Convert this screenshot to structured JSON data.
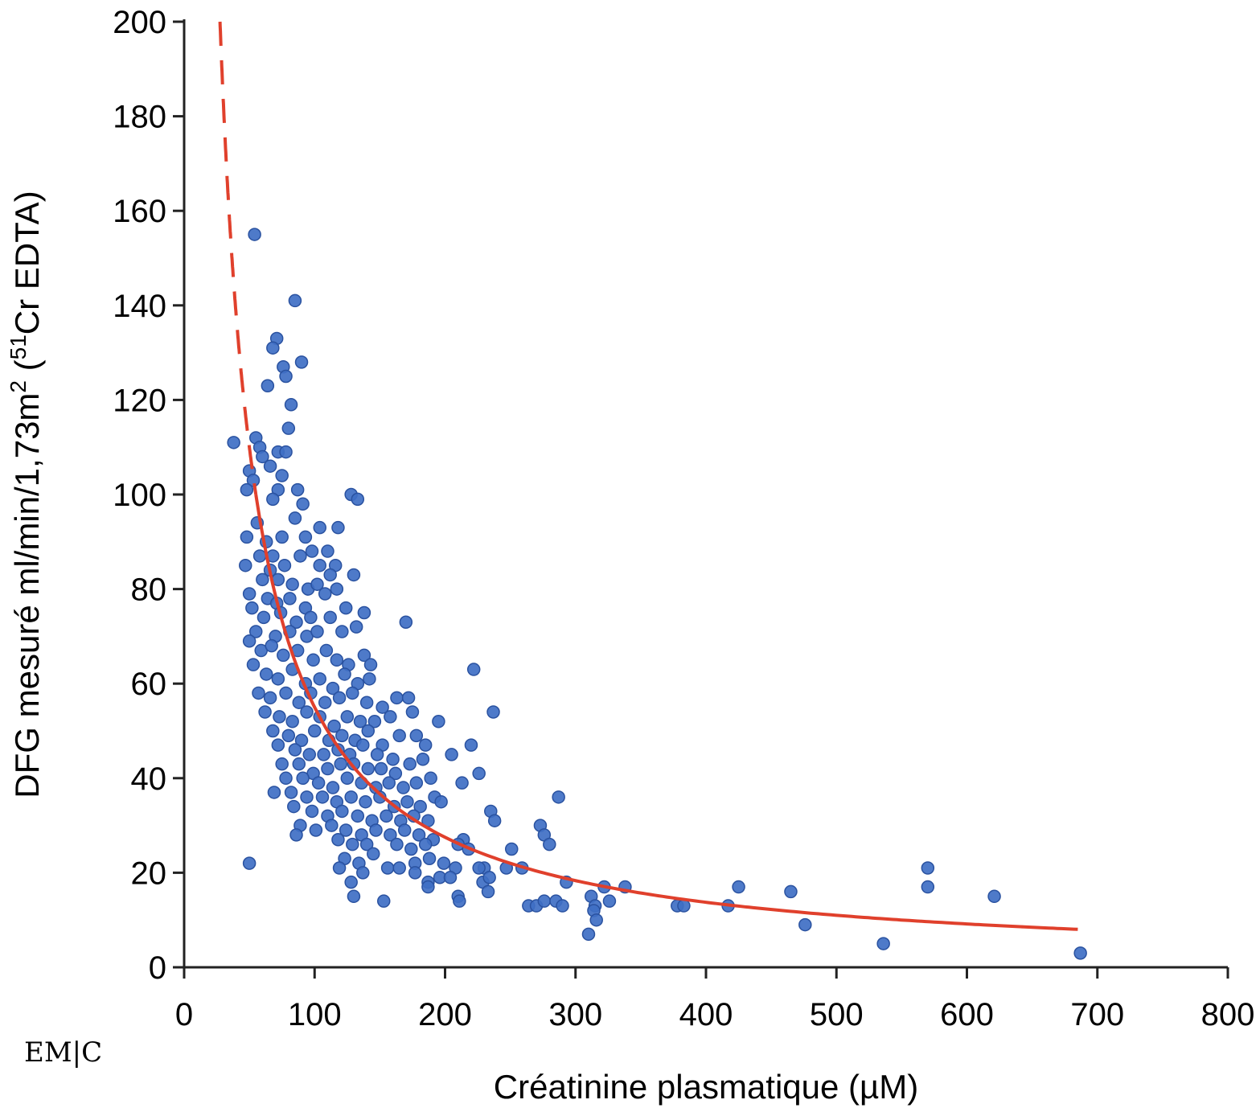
{
  "logo": {
    "text": "EM|C",
    "kind": "publisher-logo"
  },
  "chart_data": {
    "type": "scatter",
    "title": "",
    "xlabel": "Créatinine plasmatique (µM)",
    "ylabel_main": "DFG mesuré ml/min/1,73m",
    "ylabel_sup1": "2",
    "ylabel_mid": " (",
    "ylabel_sup2": "51",
    "ylabel_end": "Cr EDTA)",
    "xlim": [
      0,
      800
    ],
    "ylim": [
      0,
      200
    ],
    "x_ticks": [
      0,
      100,
      200,
      300,
      400,
      500,
      600,
      700,
      800
    ],
    "y_ticks": [
      0,
      20,
      40,
      60,
      80,
      100,
      120,
      140,
      160,
      180,
      200
    ],
    "grid": false,
    "point_color": "#3f6fc4",
    "point_edge_color": "#2a52a0",
    "curve_color": "#e0402c",
    "curve": {
      "type": "inverse",
      "formula": "y = 5500 / x",
      "x_range": [
        27.5,
        685
      ],
      "dashed_until_x": 55
    },
    "points": [
      [
        54,
        155
      ],
      [
        85,
        141
      ],
      [
        71,
        133
      ],
      [
        68,
        131
      ],
      [
        90,
        128
      ],
      [
        76,
        127
      ],
      [
        64,
        123
      ],
      [
        78,
        125
      ],
      [
        82,
        119
      ],
      [
        80,
        114
      ],
      [
        38,
        111
      ],
      [
        55,
        112
      ],
      [
        58,
        110
      ],
      [
        60,
        108
      ],
      [
        72,
        109
      ],
      [
        66,
        106
      ],
      [
        78,
        109
      ],
      [
        50,
        105
      ],
      [
        53,
        103
      ],
      [
        75,
        104
      ],
      [
        48,
        101
      ],
      [
        72,
        101
      ],
      [
        87,
        101
      ],
      [
        91,
        98
      ],
      [
        68,
        99
      ],
      [
        128,
        100
      ],
      [
        133,
        99
      ],
      [
        85,
        95
      ],
      [
        56,
        94
      ],
      [
        48,
        91
      ],
      [
        75,
        91
      ],
      [
        93,
        91
      ],
      [
        104,
        93
      ],
      [
        118,
        93
      ],
      [
        63,
        90
      ],
      [
        98,
        88
      ],
      [
        110,
        88
      ],
      [
        116,
        85
      ],
      [
        58,
        87
      ],
      [
        47,
        85
      ],
      [
        68,
        87
      ],
      [
        77,
        85
      ],
      [
        89,
        87
      ],
      [
        104,
        85
      ],
      [
        112,
        83
      ],
      [
        130,
        83
      ],
      [
        66,
        84
      ],
      [
        72,
        82
      ],
      [
        83,
        81
      ],
      [
        95,
        80
      ],
      [
        102,
        81
      ],
      [
        60,
        82
      ],
      [
        50,
        79
      ],
      [
        64,
        78
      ],
      [
        71,
        77
      ],
      [
        81,
        78
      ],
      [
        93,
        76
      ],
      [
        108,
        79
      ],
      [
        117,
        80
      ],
      [
        124,
        76
      ],
      [
        52,
        76
      ],
      [
        61,
        74
      ],
      [
        74,
        75
      ],
      [
        86,
        73
      ],
      [
        97,
        74
      ],
      [
        112,
        74
      ],
      [
        138,
        75
      ],
      [
        170,
        73
      ],
      [
        55,
        71
      ],
      [
        70,
        70
      ],
      [
        81,
        71
      ],
      [
        94,
        70
      ],
      [
        102,
        71
      ],
      [
        121,
        71
      ],
      [
        132,
        72
      ],
      [
        50,
        69
      ],
      [
        59,
        67
      ],
      [
        67,
        68
      ],
      [
        76,
        66
      ],
      [
        87,
        67
      ],
      [
        99,
        65
      ],
      [
        109,
        67
      ],
      [
        117,
        65
      ],
      [
        126,
        64
      ],
      [
        138,
        66
      ],
      [
        143,
        64
      ],
      [
        53,
        64
      ],
      [
        63,
        62
      ],
      [
        72,
        61
      ],
      [
        83,
        63
      ],
      [
        93,
        60
      ],
      [
        104,
        61
      ],
      [
        114,
        59
      ],
      [
        123,
        62
      ],
      [
        133,
        60
      ],
      [
        142,
        61
      ],
      [
        57,
        58
      ],
      [
        66,
        57
      ],
      [
        78,
        58
      ],
      [
        88,
        56
      ],
      [
        97,
        58
      ],
      [
        108,
        56
      ],
      [
        119,
        57
      ],
      [
        129,
        58
      ],
      [
        140,
        56
      ],
      [
        152,
        55
      ],
      [
        163,
        57
      ],
      [
        172,
        57
      ],
      [
        222,
        63
      ],
      [
        62,
        54
      ],
      [
        73,
        53
      ],
      [
        83,
        52
      ],
      [
        94,
        54
      ],
      [
        104,
        53
      ],
      [
        115,
        51
      ],
      [
        125,
        53
      ],
      [
        135,
        52
      ],
      [
        146,
        52
      ],
      [
        158,
        53
      ],
      [
        175,
        54
      ],
      [
        237,
        54
      ],
      [
        68,
        50
      ],
      [
        80,
        49
      ],
      [
        90,
        48
      ],
      [
        100,
        50
      ],
      [
        111,
        48
      ],
      [
        121,
        49
      ],
      [
        131,
        48
      ],
      [
        141,
        50
      ],
      [
        152,
        47
      ],
      [
        165,
        49
      ],
      [
        178,
        49
      ],
      [
        195,
        52
      ],
      [
        72,
        47
      ],
      [
        85,
        46
      ],
      [
        96,
        45
      ],
      [
        107,
        45
      ],
      [
        118,
        46
      ],
      [
        127,
        45
      ],
      [
        137,
        47
      ],
      [
        148,
        45
      ],
      [
        160,
        44
      ],
      [
        185,
        47
      ],
      [
        220,
        47
      ],
      [
        75,
        43
      ],
      [
        88,
        43
      ],
      [
        99,
        41
      ],
      [
        110,
        42
      ],
      [
        120,
        43
      ],
      [
        130,
        43
      ],
      [
        141,
        42
      ],
      [
        151,
        42
      ],
      [
        162,
        41
      ],
      [
        173,
        43
      ],
      [
        183,
        44
      ],
      [
        205,
        45
      ],
      [
        78,
        40
      ],
      [
        91,
        40
      ],
      [
        103,
        39
      ],
      [
        114,
        38
      ],
      [
        125,
        40
      ],
      [
        136,
        39
      ],
      [
        147,
        38
      ],
      [
        157,
        39
      ],
      [
        168,
        38
      ],
      [
        178,
        39
      ],
      [
        189,
        40
      ],
      [
        226,
        41
      ],
      [
        213,
        39
      ],
      [
        82,
        37
      ],
      [
        94,
        36
      ],
      [
        106,
        36
      ],
      [
        117,
        35
      ],
      [
        128,
        36
      ],
      [
        139,
        35
      ],
      [
        150,
        36
      ],
      [
        161,
        34
      ],
      [
        171,
        35
      ],
      [
        181,
        34
      ],
      [
        192,
        36
      ],
      [
        287,
        36
      ],
      [
        69,
        37
      ],
      [
        84,
        34
      ],
      [
        98,
        33
      ],
      [
        110,
        32
      ],
      [
        121,
        33
      ],
      [
        133,
        32
      ],
      [
        144,
        31
      ],
      [
        155,
        32
      ],
      [
        166,
        31
      ],
      [
        176,
        32
      ],
      [
        187,
        31
      ],
      [
        197,
        35
      ],
      [
        235,
        33
      ],
      [
        89,
        30
      ],
      [
        101,
        29
      ],
      [
        113,
        30
      ],
      [
        124,
        29
      ],
      [
        136,
        28
      ],
      [
        147,
        29
      ],
      [
        158,
        28
      ],
      [
        169,
        29
      ],
      [
        180,
        28
      ],
      [
        191,
        27
      ],
      [
        214,
        27
      ],
      [
        238,
        31
      ],
      [
        273,
        30
      ],
      [
        86,
        28
      ],
      [
        118,
        27
      ],
      [
        129,
        26
      ],
      [
        140,
        26
      ],
      [
        163,
        26
      ],
      [
        174,
        25
      ],
      [
        185,
        26
      ],
      [
        210,
        26
      ],
      [
        218,
        25
      ],
      [
        230,
        21
      ],
      [
        276,
        28
      ],
      [
        280,
        26
      ],
      [
        251,
        25
      ],
      [
        123,
        23
      ],
      [
        134,
        22
      ],
      [
        145,
        24
      ],
      [
        156,
        21
      ],
      [
        165,
        21
      ],
      [
        177,
        22
      ],
      [
        188,
        23
      ],
      [
        199,
        22
      ],
      [
        208,
        21
      ],
      [
        226,
        21
      ],
      [
        247,
        21
      ],
      [
        259,
        21
      ],
      [
        50,
        22
      ],
      [
        119,
        21
      ],
      [
        137,
        20
      ],
      [
        177,
        20
      ],
      [
        187,
        18
      ],
      [
        196,
        19
      ],
      [
        204,
        19
      ],
      [
        229,
        18
      ],
      [
        234,
        19
      ],
      [
        293,
        18
      ],
      [
        322,
        17
      ],
      [
        338,
        17
      ],
      [
        425,
        17
      ],
      [
        465,
        16
      ],
      [
        570,
        21
      ],
      [
        570,
        17
      ],
      [
        621,
        15
      ],
      [
        128,
        18
      ],
      [
        130,
        15
      ],
      [
        153,
        14
      ],
      [
        187,
        17
      ],
      [
        210,
        15
      ],
      [
        211,
        14
      ],
      [
        233,
        16
      ],
      [
        264,
        13
      ],
      [
        270,
        13
      ],
      [
        276,
        14
      ],
      [
        285,
        14
      ],
      [
        290,
        13
      ],
      [
        312,
        15
      ],
      [
        315,
        13
      ],
      [
        314,
        12
      ],
      [
        316,
        10
      ],
      [
        326,
        14
      ],
      [
        310,
        7
      ],
      [
        378,
        13
      ],
      [
        383,
        13
      ],
      [
        417,
        13
      ],
      [
        476,
        9
      ],
      [
        536,
        5
      ],
      [
        687,
        3
      ]
    ]
  }
}
